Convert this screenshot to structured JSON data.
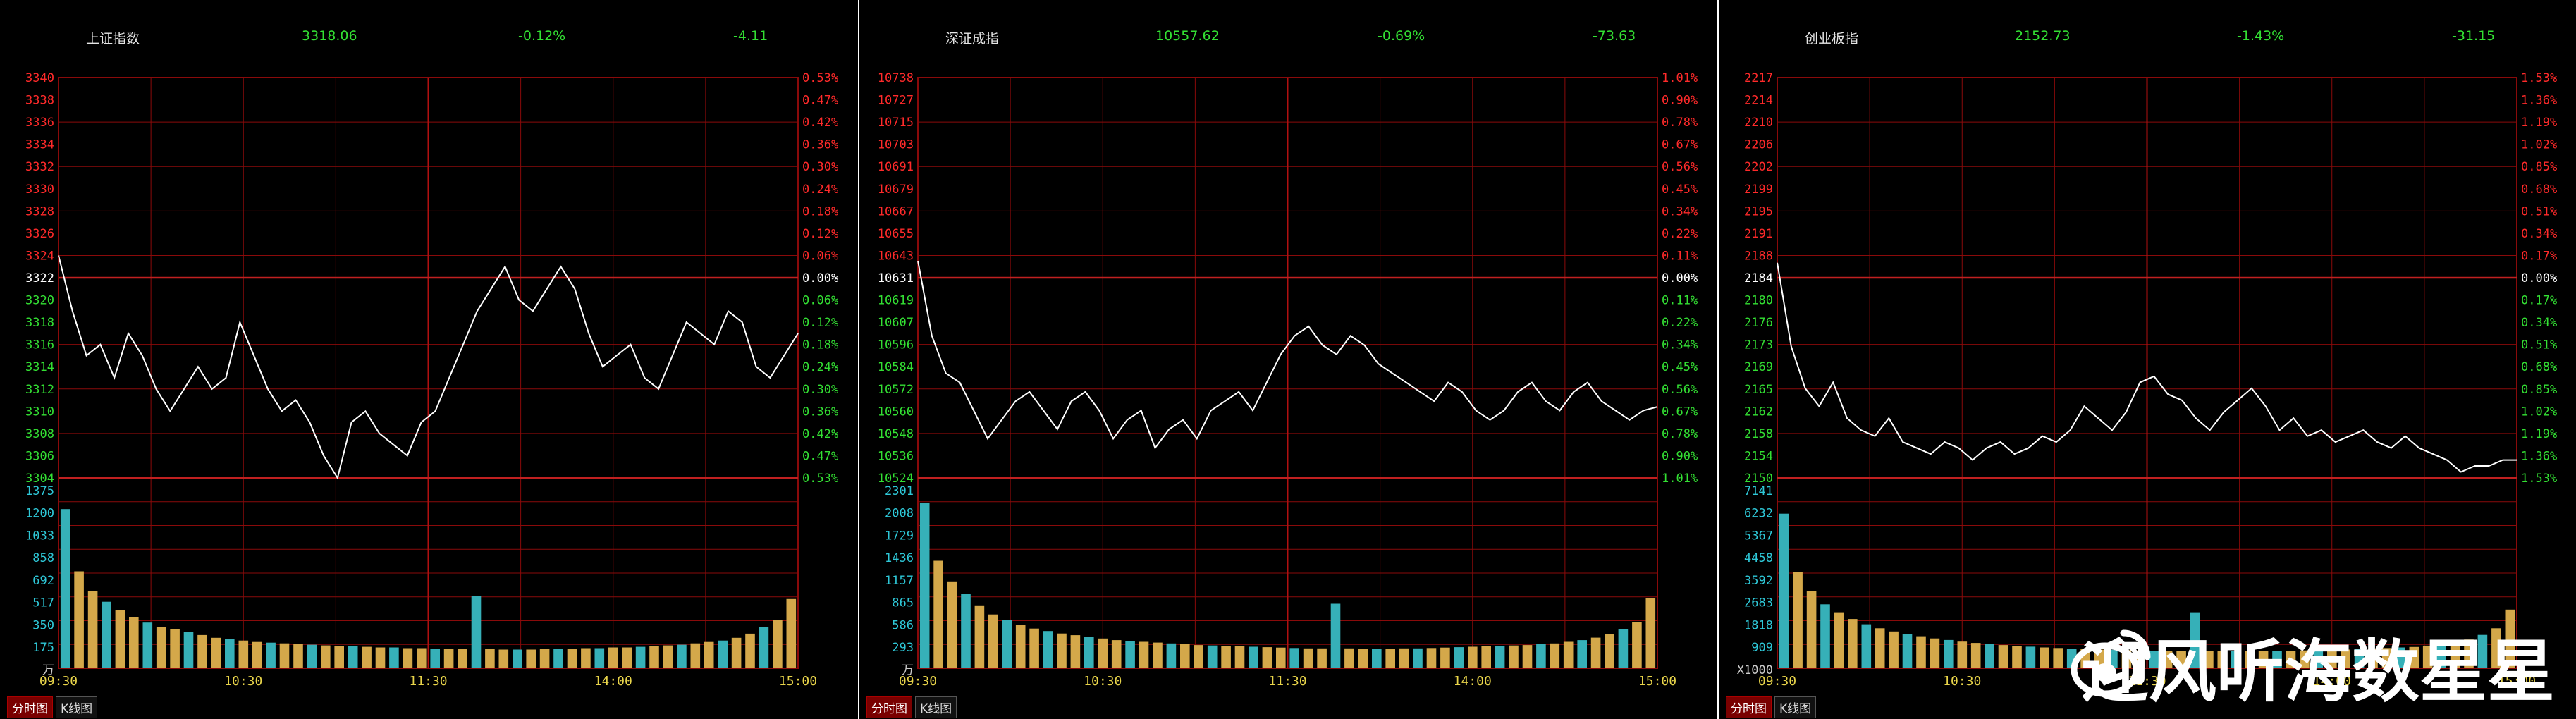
{
  "panels": [
    {
      "name": "上证指数",
      "value": "3318.06",
      "pct": "-0.12%",
      "change": "-4.11",
      "tabs": [
        "分时图",
        "K线图"
      ],
      "chart_data": {
        "type": "line",
        "title": "上证指数",
        "prev_close": 3322,
        "price_ticks": [
          "3340",
          "3338",
          "3336",
          "3334",
          "3332",
          "3330",
          "3328",
          "3326",
          "3324",
          "3322",
          "3320",
          "3318",
          "3316",
          "3314",
          "3312",
          "3310",
          "3308",
          "3306",
          "3304"
        ],
        "pct_ticks": [
          "0.53%",
          "0.47%",
          "0.42%",
          "0.36%",
          "0.30%",
          "0.24%",
          "0.18%",
          "0.12%",
          "0.06%",
          "0.00%",
          "0.06%",
          "0.12%",
          "0.18%",
          "0.24%",
          "0.30%",
          "0.36%",
          "0.42%",
          "0.47%",
          "0.53%"
        ],
        "ylim": [
          3304,
          3340
        ],
        "volume_ticks": [
          "1375",
          "1200",
          "1033",
          "858",
          "692",
          "517",
          "350",
          "175",
          "万"
        ],
        "volume_max": 1375,
        "time_ticks": [
          "09:30",
          "10:30",
          "11:30",
          "14:00",
          "15:00"
        ],
        "price": [
          3324,
          3319,
          3315,
          3316,
          3313,
          3317,
          3315,
          3312,
          3310,
          3312,
          3314,
          3312,
          3313,
          3318,
          3315,
          3312,
          3310,
          3311,
          3309,
          3306,
          3304,
          3309,
          3310,
          3308,
          3307,
          3306,
          3309,
          3310,
          3313,
          3316,
          3319,
          3321,
          3323,
          3320,
          3319,
          3321,
          3323,
          3321,
          3317,
          3314,
          3315,
          3316,
          3313,
          3312,
          3315,
          3318,
          3317,
          3316,
          3319,
          3318,
          3314,
          3313,
          3315,
          3317
        ],
        "volume": [
          1150,
          700,
          560,
          480,
          420,
          370,
          330,
          300,
          280,
          260,
          240,
          220,
          210,
          200,
          190,
          185,
          180,
          175,
          170,
          165,
          160,
          160,
          155,
          150,
          150,
          145,
          145,
          140,
          140,
          140,
          520,
          140,
          135,
          135,
          135,
          140,
          140,
          140,
          145,
          145,
          150,
          150,
          155,
          160,
          165,
          170,
          180,
          190,
          200,
          220,
          250,
          300,
          350,
          500
        ]
      }
    },
    {
      "name": "深证成指",
      "value": "10557.62",
      "pct": "-0.69%",
      "change": "-73.63",
      "tabs": [
        "分时图",
        "K线图"
      ],
      "chart_data": {
        "type": "line",
        "title": "深证成指",
        "prev_close": 10631,
        "price_ticks": [
          "10738",
          "10727",
          "10715",
          "10703",
          "10691",
          "10679",
          "10667",
          "10655",
          "10643",
          "10631",
          "10619",
          "10607",
          "10596",
          "10584",
          "10572",
          "10560",
          "10548",
          "10536",
          "10524"
        ],
        "pct_ticks": [
          "1.01%",
          "0.90%",
          "0.78%",
          "0.67%",
          "0.56%",
          "0.45%",
          "0.34%",
          "0.22%",
          "0.11%",
          "0.00%",
          "0.11%",
          "0.22%",
          "0.34%",
          "0.45%",
          "0.56%",
          "0.67%",
          "0.78%",
          "0.90%",
          "1.01%"
        ],
        "ylim": [
          10524,
          10738
        ],
        "volume_ticks": [
          "2301",
          "2008",
          "1729",
          "1436",
          "1157",
          "865",
          "586",
          "293",
          "万"
        ],
        "volume_max": 2301,
        "time_ticks": [
          "09:30",
          "10:30",
          "11:30",
          "14:00",
          "15:00"
        ],
        "price": [
          10640,
          10600,
          10580,
          10575,
          10560,
          10545,
          10555,
          10565,
          10570,
          10560,
          10550,
          10565,
          10570,
          10560,
          10545,
          10555,
          10560,
          10540,
          10550,
          10555,
          10545,
          10560,
          10565,
          10570,
          10560,
          10575,
          10590,
          10600,
          10605,
          10595,
          10590,
          10600,
          10595,
          10585,
          10580,
          10575,
          10570,
          10565,
          10575,
          10570,
          10560,
          10555,
          10560,
          10570,
          10575,
          10565,
          10560,
          10570,
          10575,
          10565,
          10560,
          10555,
          10560,
          10562
        ],
        "volume": [
          2000,
          1300,
          1050,
          900,
          760,
          650,
          580,
          520,
          480,
          450,
          420,
          400,
          380,
          360,
          340,
          330,
          320,
          310,
          300,
          290,
          280,
          275,
          270,
          265,
          260,
          255,
          250,
          245,
          240,
          240,
          780,
          240,
          235,
          235,
          235,
          240,
          240,
          245,
          250,
          255,
          260,
          265,
          270,
          275,
          280,
          290,
          300,
          320,
          340,
          370,
          410,
          470,
          560,
          850
        ]
      }
    },
    {
      "name": "创业板指",
      "value": "2152.73",
      "pct": "-1.43%",
      "change": "-31.15",
      "tabs": [
        "分时图",
        "K线图"
      ],
      "chart_data": {
        "type": "line",
        "title": "创业板指",
        "prev_close": 2184,
        "price_ticks": [
          "2217",
          "2214",
          "2210",
          "2206",
          "2202",
          "2199",
          "2195",
          "2191",
          "2188",
          "2184",
          "2180",
          "2176",
          "2173",
          "2169",
          "2165",
          "2162",
          "2158",
          "2154",
          "2150"
        ],
        "pct_ticks": [
          "1.53%",
          "1.36%",
          "1.19%",
          "1.02%",
          "0.85%",
          "0.68%",
          "0.51%",
          "0.34%",
          "0.17%",
          "0.00%",
          "0.17%",
          "0.34%",
          "0.51%",
          "0.68%",
          "0.85%",
          "1.02%",
          "1.19%",
          "1.36%",
          "1.53%"
        ],
        "ylim": [
          2150,
          2217
        ],
        "volume_ticks": [
          "7141",
          "6232",
          "5367",
          "4458",
          "3592",
          "2683",
          "1818",
          "909",
          "X1000"
        ],
        "volume_max": 7141,
        "time_ticks": [
          "09:30",
          "10:30",
          "11:30",
          "14:00",
          "15:00"
        ],
        "price": [
          2186,
          2172,
          2165,
          2162,
          2166,
          2160,
          2158,
          2157,
          2160,
          2156,
          2155,
          2154,
          2156,
          2155,
          2153,
          2155,
          2156,
          2154,
          2155,
          2157,
          2156,
          2158,
          2162,
          2160,
          2158,
          2161,
          2166,
          2167,
          2164,
          2163,
          2160,
          2158,
          2161,
          2163,
          2165,
          2162,
          2158,
          2160,
          2157,
          2158,
          2156,
          2157,
          2158,
          2156,
          2155,
          2157,
          2155,
          2154,
          2153,
          2151,
          2152,
          2152,
          2153,
          2153
        ],
        "volume": [
          5800,
          3600,
          2900,
          2400,
          2100,
          1850,
          1650,
          1500,
          1380,
          1280,
          1200,
          1120,
          1060,
          1000,
          950,
          900,
          870,
          840,
          810,
          780,
          760,
          740,
          720,
          700,
          690,
          680,
          670,
          660,
          650,
          650,
          2100,
          650,
          640,
          640,
          640,
          650,
          650,
          660,
          670,
          680,
          690,
          700,
          720,
          740,
          760,
          780,
          800,
          850,
          900,
          980,
          1080,
          1250,
          1500,
          2200
        ]
      }
    }
  ],
  "watermark": {
    "text": "迎风听海数星星"
  },
  "colors": {
    "up": "#ff2a2a",
    "down": "#33e033",
    "neutral": "#ffffff",
    "volume_axis": "#2ec8d8",
    "grid": "#8a0a0a",
    "vol_up": "#d4a84a",
    "vol_down": "#36b0b8"
  }
}
